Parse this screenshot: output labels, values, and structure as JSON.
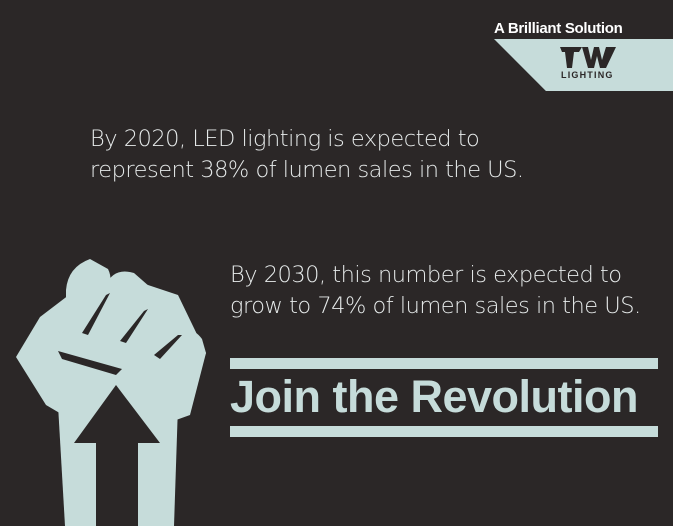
{
  "brand": {
    "tagline": "A Brilliant Solution",
    "logo_word": "LIGHTING",
    "logo_mark": "tw-logo-icon"
  },
  "stats": {
    "stat_2020": "By 2020, LED lighting is expected to represent 38% of lumen sales in the US.",
    "stat_2030": "By 2030, this number is expected to grow to 74% of lumen sales in the US."
  },
  "cta": {
    "headline": "Join the Revolution"
  },
  "illustration": {
    "icon": "raised-fist-icon"
  },
  "colors": {
    "background": "#2b2727",
    "accent": "#c6dcda",
    "text": "#e6eaea",
    "tagline": "#ffffff"
  }
}
